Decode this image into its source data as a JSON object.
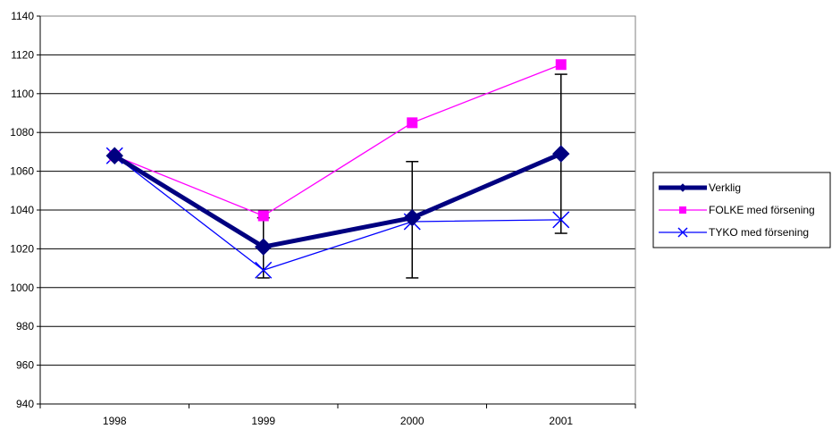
{
  "chart_data": {
    "type": "line",
    "title": "",
    "xlabel": "",
    "ylabel": "",
    "categories": [
      "1998",
      "1999",
      "2000",
      "2001"
    ],
    "ylim": [
      940,
      1140
    ],
    "y_ticks": [
      940,
      960,
      980,
      1000,
      1020,
      1040,
      1060,
      1080,
      1100,
      1120,
      1140
    ],
    "grid": "horizontal",
    "legend_position": "right",
    "series": [
      {
        "name": "Verklig",
        "values": [
          1068,
          1021,
          1036,
          1069
        ],
        "color": "#000080",
        "marker": "diamond",
        "error_bars": [
          null,
          [
            1005,
            1036
          ],
          [
            1005,
            1065
          ],
          [
            1028,
            1110
          ]
        ]
      },
      {
        "name": "FOLKE med försening",
        "values": [
          1068,
          1037,
          1085,
          1115
        ],
        "color": "#FF00FF",
        "marker": "square"
      },
      {
        "name": "TYKO med försening",
        "values": [
          1068,
          1009,
          1034,
          1035
        ],
        "color": "#0000FF",
        "marker": "x"
      }
    ]
  }
}
